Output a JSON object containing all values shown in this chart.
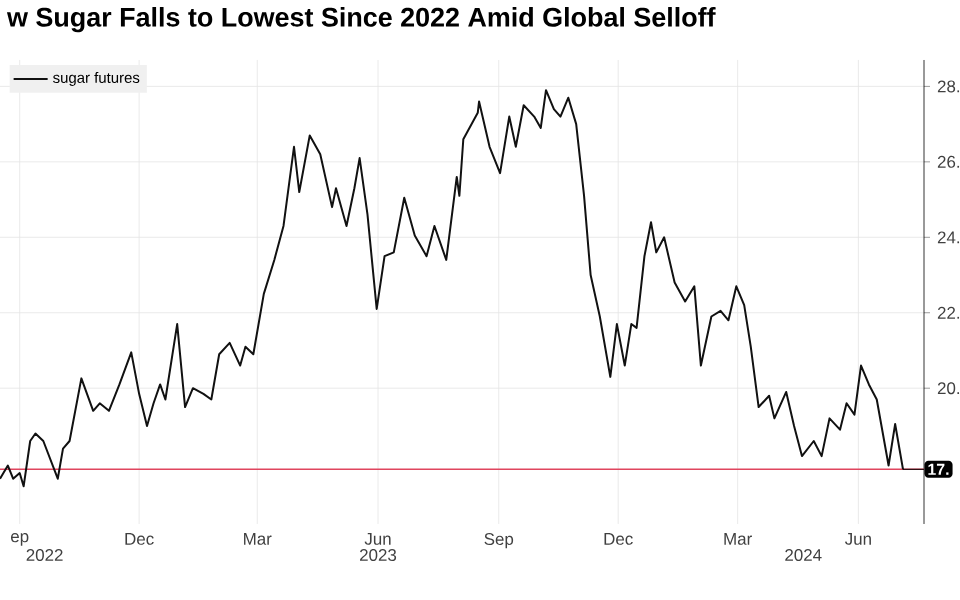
{
  "chart_data": {
    "type": "line",
    "title": "w Sugar Falls to Lowest Since 2022 Amid Global Selloff",
    "x": [
      "2022-08-17",
      "2022-08-23",
      "2022-08-27",
      "2022-09-01",
      "2022-09-04",
      "2022-09-09",
      "2022-09-13",
      "2022-09-19",
      "2022-09-30",
      "2022-10-04",
      "2022-10-09",
      "2022-10-18",
      "2022-10-27",
      "2022-11-01",
      "2022-11-08",
      "2022-11-16",
      "2022-11-25",
      "2022-12-01",
      "2022-12-07",
      "2022-12-12",
      "2022-12-17",
      "2022-12-21",
      "2022-12-30",
      "2023-01-05",
      "2023-01-11",
      "2023-01-19",
      "2023-01-25",
      "2023-01-31",
      "2023-02-08",
      "2023-02-16",
      "2023-02-20",
      "2023-02-26",
      "2023-03-06",
      "2023-03-14",
      "2023-03-21",
      "2023-03-29",
      "2023-04-02",
      "2023-04-10",
      "2023-04-18",
      "2023-04-27",
      "2023-04-30",
      "2023-05-08",
      "2023-05-14",
      "2023-05-18",
      "2023-05-24",
      "2023-05-31",
      "2023-06-06",
      "2023-06-13",
      "2023-06-21",
      "2023-06-29",
      "2023-07-08",
      "2023-07-14",
      "2023-07-23",
      "2023-07-31",
      "2023-08-02",
      "2023-08-05",
      "2023-08-16",
      "2023-08-17",
      "2023-08-25",
      "2023-09-02",
      "2023-09-09",
      "2023-09-14",
      "2023-09-20",
      "2023-09-28",
      "2023-10-03",
      "2023-10-07",
      "2023-10-13",
      "2023-10-18",
      "2023-10-24",
      "2023-10-30",
      "2023-11-05",
      "2023-11-10",
      "2023-11-17",
      "2023-11-25",
      "2023-11-30",
      "2023-12-06",
      "2023-12-11",
      "2023-12-15",
      "2023-12-21",
      "2023-12-26",
      "2023-12-30",
      "2024-01-05",
      "2024-01-13",
      "2024-01-21",
      "2024-01-28",
      "2024-02-02",
      "2024-02-10",
      "2024-02-17",
      "2024-02-23",
      "2024-02-29",
      "2024-03-06",
      "2024-03-11",
      "2024-03-17",
      "2024-03-25",
      "2024-03-29",
      "2024-04-07",
      "2024-04-13",
      "2024-04-19",
      "2024-04-28",
      "2024-05-04",
      "2024-05-10",
      "2024-05-18",
      "2024-05-23",
      "2024-05-29",
      "2024-06-03",
      "2024-06-09",
      "2024-06-15",
      "2024-06-24",
      "2024-06-29",
      "2024-07-05"
    ],
    "series": [
      {
        "name": "sugar futures",
        "color": "#111111",
        "values": [
          17.6,
          17.95,
          17.6,
          17.75,
          17.4,
          18.6,
          18.8,
          18.6,
          17.6,
          18.4,
          18.6,
          20.26,
          19.4,
          19.6,
          19.4,
          20.1,
          20.95,
          19.85,
          19.0,
          19.6,
          20.1,
          19.7,
          21.7,
          19.5,
          20.0,
          19.85,
          19.7,
          20.9,
          21.2,
          20.6,
          21.1,
          20.9,
          22.5,
          23.4,
          24.3,
          26.4,
          25.2,
          26.7,
          26.2,
          24.8,
          25.3,
          24.3,
          25.3,
          26.1,
          24.6,
          22.1,
          23.5,
          23.6,
          25.05,
          24.05,
          23.5,
          24.3,
          23.4,
          25.6,
          25.1,
          26.6,
          27.3,
          27.6,
          26.4,
          25.7,
          27.2,
          26.4,
          27.5,
          27.2,
          26.9,
          27.9,
          27.4,
          27.2,
          27.7,
          27.0,
          25.1,
          23.0,
          21.9,
          20.3,
          21.7,
          20.6,
          21.7,
          21.6,
          23.5,
          24.4,
          23.6,
          24.0,
          22.8,
          22.3,
          22.7,
          20.6,
          21.9,
          22.05,
          21.8,
          22.7,
          22.2,
          21.1,
          19.5,
          19.8,
          19.2,
          19.9,
          19.0,
          18.2,
          18.6,
          18.2,
          19.2,
          18.9,
          19.6,
          19.3,
          20.6,
          20.1,
          19.7,
          17.95,
          19.05,
          17.85
        ]
      }
    ],
    "xlim": [
      "2022-08-17",
      "2024-07-21"
    ],
    "xticks": [
      {
        "value": "2022-09-01",
        "label": "ep"
      },
      {
        "value": "2022-12-01",
        "label": "Dec"
      },
      {
        "value": "2023-03-01",
        "label": "Mar"
      },
      {
        "value": "2023-06-01",
        "label": "Jun"
      },
      {
        "value": "2023-09-01",
        "label": "Sep"
      },
      {
        "value": "2023-12-01",
        "label": "Dec"
      },
      {
        "value": "2024-03-01",
        "label": "Mar"
      },
      {
        "value": "2024-06-01",
        "label": "Jun"
      }
    ],
    "x2lim": [
      "2022-08-17",
      "2024-07-21"
    ],
    "x2ticks": [
      {
        "value": "2022-09-20",
        "label": "2022"
      },
      {
        "value": "2023-06-01",
        "label": "2023"
      },
      {
        "value": "2024-04-20",
        "label": "2024"
      }
    ],
    "ylim": [
      16.4,
      28.7
    ],
    "yticks": [
      {
        "value": 20,
        "label": "20."
      },
      {
        "value": 22,
        "label": "22."
      },
      {
        "value": 24,
        "label": "24."
      },
      {
        "value": 26,
        "label": "26."
      },
      {
        "value": 28,
        "label": "28."
      }
    ],
    "ref_lines": [
      {
        "axis": "y",
        "value": 17.85,
        "color": "#e0455e"
      }
    ],
    "annotations": [
      {
        "text": "17.",
        "x": "2024-07-05",
        "y": 17.85
      }
    ],
    "grid": true,
    "legend": "top left",
    "marker": "none",
    "line_style": "solid"
  }
}
